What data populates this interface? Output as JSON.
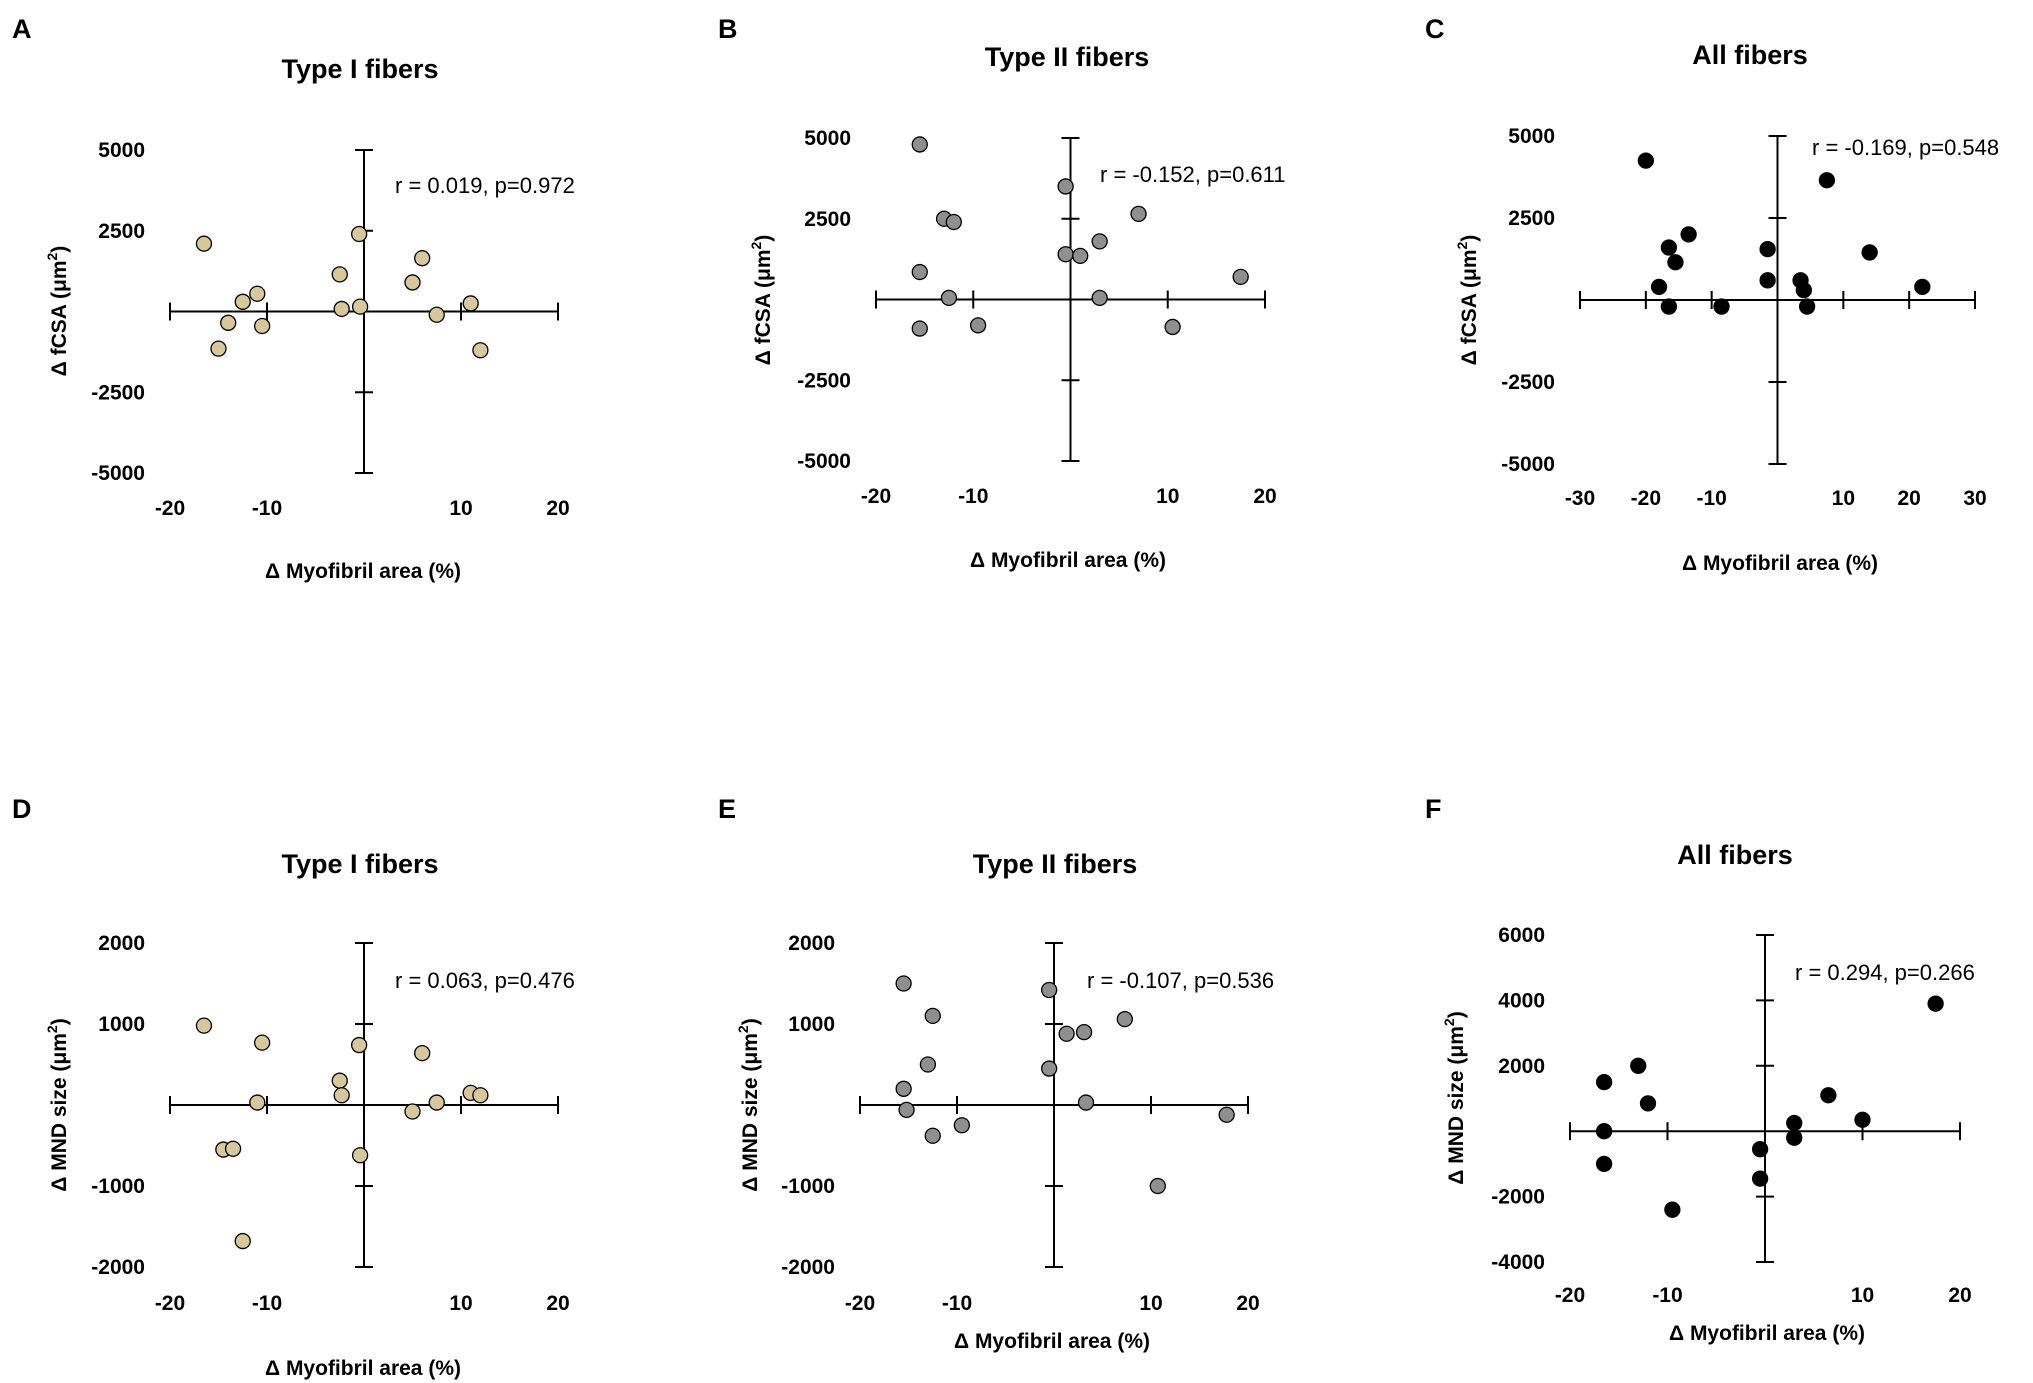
{
  "chart_data": [
    {
      "type": "scatter",
      "panel": "A",
      "title": "Type I fibers",
      "xlabel": "Δ Myofibril area (%)",
      "ylabel_main": "Δ fCSA (μm",
      "ylabel_sup": "2",
      "ylabel_end": ")",
      "xlim": [
        -20,
        20
      ],
      "ylim": [
        -5000,
        5000
      ],
      "xticks": [
        "-20",
        "-10",
        "10",
        "20"
      ],
      "yticks": [
        "5000",
        "2500",
        "-2500",
        "-5000"
      ],
      "annotation": "r = 0.019, p=0.972",
      "marker_color": "#d6c89a",
      "points": [
        [
          -16.5,
          2100
        ],
        [
          -15,
          -1150
        ],
        [
          -14,
          -350
        ],
        [
          -12.5,
          300
        ],
        [
          -11,
          550
        ],
        [
          -10.5,
          -450
        ],
        [
          -2.5,
          1150
        ],
        [
          -2.3,
          80
        ],
        [
          -0.5,
          2400
        ],
        [
          -0.4,
          150
        ],
        [
          5,
          900
        ],
        [
          6,
          1650
        ],
        [
          7.5,
          -100
        ],
        [
          11,
          250
        ],
        [
          12,
          -1200
        ]
      ]
    },
    {
      "type": "scatter",
      "panel": "B",
      "title": "Type II fibers",
      "xlabel": "Δ Myofibril area (%)",
      "ylabel_main": "Δ fCSA (μm",
      "ylabel_sup": "2",
      "ylabel_end": ")",
      "xlim": [
        -20,
        20
      ],
      "ylim": [
        -5000,
        5000
      ],
      "xticks": [
        "-20",
        "-10",
        "10",
        "20"
      ],
      "yticks": [
        "5000",
        "2500",
        "-2500",
        "-5000"
      ],
      "annotation": "r = -0.152, p=0.611",
      "marker_color": "#8f8f8f",
      "points": [
        [
          -15.5,
          4800
        ],
        [
          -15.5,
          850
        ],
        [
          -15.5,
          -900
        ],
        [
          -13,
          2500
        ],
        [
          -12.5,
          50
        ],
        [
          -12,
          2400
        ],
        [
          -9.5,
          -800
        ],
        [
          -0.5,
          3500
        ],
        [
          -0.5,
          1400
        ],
        [
          1,
          1350
        ],
        [
          3,
          1800
        ],
        [
          3,
          50
        ],
        [
          7,
          2650
        ],
        [
          10.5,
          -850
        ],
        [
          17.5,
          700
        ]
      ]
    },
    {
      "type": "scatter",
      "panel": "C",
      "title": "All fibers",
      "xlabel": "Δ Myofibril area (%)",
      "ylabel_main": "Δ fCSA (μm",
      "ylabel_sup": "2",
      "ylabel_end": ")",
      "xlim": [
        -30,
        30
      ],
      "ylim": [
        -5000,
        5000
      ],
      "xticks": [
        "-30",
        "-20",
        "-10",
        "10",
        "20",
        "30"
      ],
      "yticks": [
        "5000",
        "2500",
        "-2500",
        "-5000"
      ],
      "annotation": "r = -0.169, p=0.548",
      "marker_color": "#000000",
      "points": [
        [
          -20,
          4250
        ],
        [
          -18,
          400
        ],
        [
          -16.5,
          1600
        ],
        [
          -16.5,
          -200
        ],
        [
          -15.5,
          1150
        ],
        [
          -13.5,
          2000
        ],
        [
          -8.5,
          -200
        ],
        [
          -1.5,
          1550
        ],
        [
          -1.5,
          600
        ],
        [
          3.5,
          600
        ],
        [
          4,
          300
        ],
        [
          4.5,
          -200
        ],
        [
          7.5,
          3650
        ],
        [
          14,
          1450
        ],
        [
          22,
          400
        ]
      ]
    },
    {
      "type": "scatter",
      "panel": "D",
      "title": "Type I fibers",
      "xlabel": "Δ Myofibril area (%)",
      "ylabel_main": "Δ MND size (μm",
      "ylabel_sup": "2",
      "ylabel_end": ")",
      "xlim": [
        -20,
        20
      ],
      "ylim": [
        -2000,
        2000
      ],
      "xticks": [
        "-20",
        "-10",
        "10",
        "20"
      ],
      "yticks": [
        "2000",
        "1000",
        "-1000",
        "-2000"
      ],
      "annotation": "r = 0.063, p=0.476",
      "marker_color": "#d6c89a",
      "points": [
        [
          -16.5,
          980
        ],
        [
          -14.5,
          -550
        ],
        [
          -13.5,
          -540
        ],
        [
          -12.5,
          -1680
        ],
        [
          -11,
          30
        ],
        [
          -10.5,
          770
        ],
        [
          -2.5,
          300
        ],
        [
          -2.3,
          120
        ],
        [
          -0.5,
          740
        ],
        [
          -0.4,
          -620
        ],
        [
          5,
          -80
        ],
        [
          6,
          640
        ],
        [
          7.5,
          30
        ],
        [
          11,
          150
        ],
        [
          12,
          120
        ]
      ]
    },
    {
      "type": "scatter",
      "panel": "E",
      "title": "Type II fibers",
      "xlabel": "Δ Myofibril area (%)",
      "ylabel_main": "Δ MND size (μm",
      "ylabel_sup": "2",
      "ylabel_end": ")",
      "xlim": [
        -20,
        20
      ],
      "ylim": [
        -2000,
        2000
      ],
      "xticks": [
        "-20",
        "-10",
        "10",
        "20"
      ],
      "yticks": [
        "2000",
        "1000",
        "-1000",
        "-2000"
      ],
      "annotation": "r = -0.107, p=0.536",
      "marker_color": "#8f8f8f",
      "points": [
        [
          -15.5,
          1500
        ],
        [
          -15.5,
          200
        ],
        [
          -15.2,
          -60
        ],
        [
          -13,
          500
        ],
        [
          -12.5,
          1100
        ],
        [
          -12.5,
          -380
        ],
        [
          -9.5,
          -250
        ],
        [
          -0.5,
          1420
        ],
        [
          -0.5,
          450
        ],
        [
          1.3,
          880
        ],
        [
          3.1,
          900
        ],
        [
          3.3,
          30
        ],
        [
          7.3,
          1060
        ],
        [
          10.7,
          -1000
        ],
        [
          17.8,
          -120
        ]
      ]
    },
    {
      "type": "scatter",
      "panel": "F",
      "title": "All fibers",
      "xlabel": "Δ Myofibril area (%)",
      "ylabel_main": "Δ MND size (μm",
      "ylabel_sup": "2",
      "ylabel_end": ")",
      "xlim": [
        -20,
        20
      ],
      "ylim": [
        -4000,
        6000
      ],
      "xticks": [
        "-20",
        "-10",
        "10",
        "20"
      ],
      "yticks": [
        "6000",
        "4000",
        "2000",
        "-2000",
        "-4000"
      ],
      "annotation": "r = 0.294, p=0.266",
      "marker_color": "#000000",
      "points": [
        [
          -16.5,
          1500
        ],
        [
          -16.5,
          0
        ],
        [
          -16.5,
          -1000
        ],
        [
          -13,
          2000
        ],
        [
          -12,
          850
        ],
        [
          -9.5,
          -2400
        ],
        [
          -0.5,
          -550
        ],
        [
          -0.5,
          -1450
        ],
        [
          3,
          250
        ],
        [
          3,
          -200
        ],
        [
          6.5,
          1100
        ],
        [
          10,
          350
        ],
        [
          17.5,
          3900
        ]
      ]
    }
  ]
}
